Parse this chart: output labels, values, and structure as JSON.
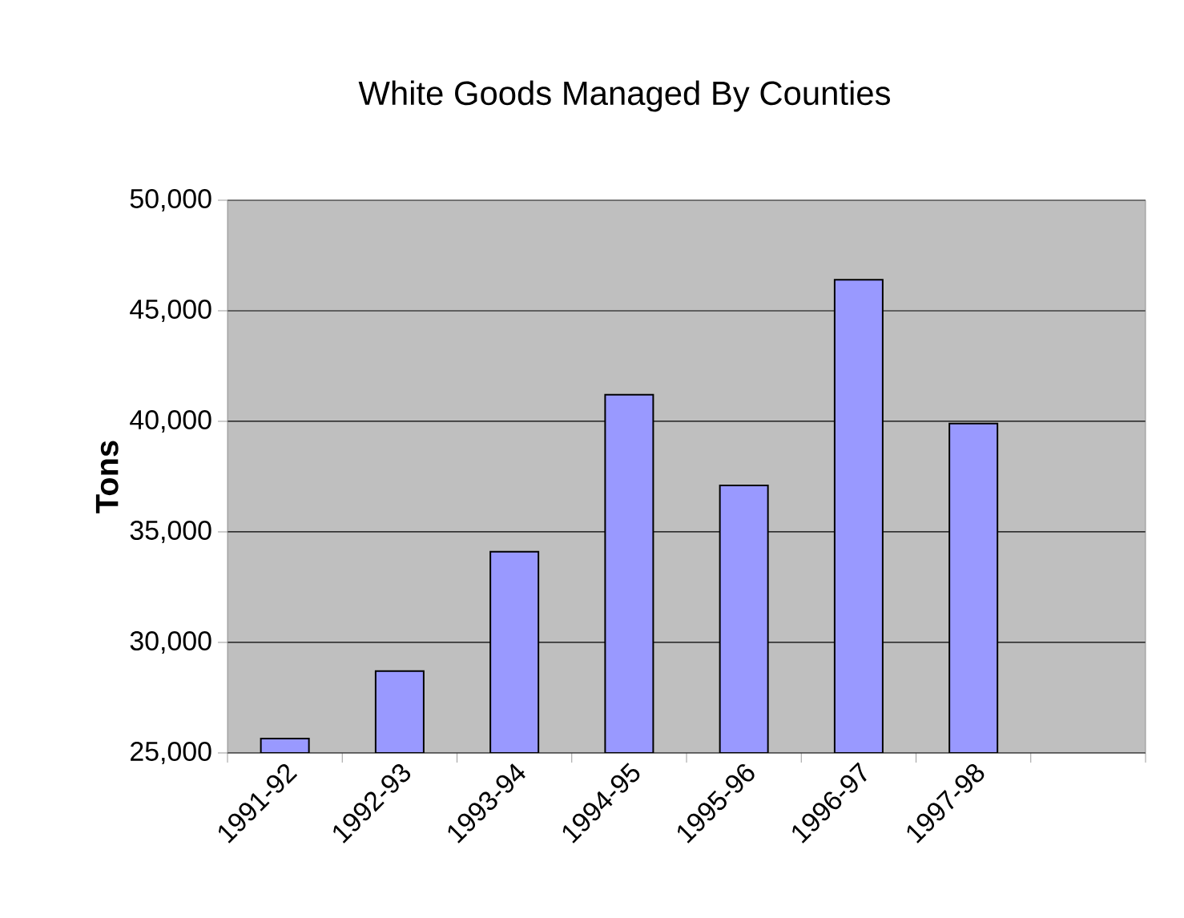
{
  "chart_data": {
    "type": "bar",
    "title": "White Goods Managed By Counties",
    "ylabel": "Tons",
    "categories": [
      "1991-92",
      "1992-93",
      "1993-94",
      "1994-95",
      "1995-96",
      "1996-97",
      "1997-98",
      null
    ],
    "values": [
      25650,
      28700,
      34100,
      41200,
      37100,
      46400,
      39900,
      null
    ],
    "color": "#9999ff",
    "ylim": [
      25000,
      50000
    ],
    "yticks": [
      {
        "value": 25000,
        "label": "25,000"
      },
      {
        "value": 30000,
        "label": "30,000"
      },
      {
        "value": 35000,
        "label": "35,000"
      },
      {
        "value": 40000,
        "label": "40,000"
      },
      {
        "value": 45000,
        "label": "45,000"
      },
      {
        "value": 50000,
        "label": "50,000"
      }
    ],
    "grid": "y"
  }
}
